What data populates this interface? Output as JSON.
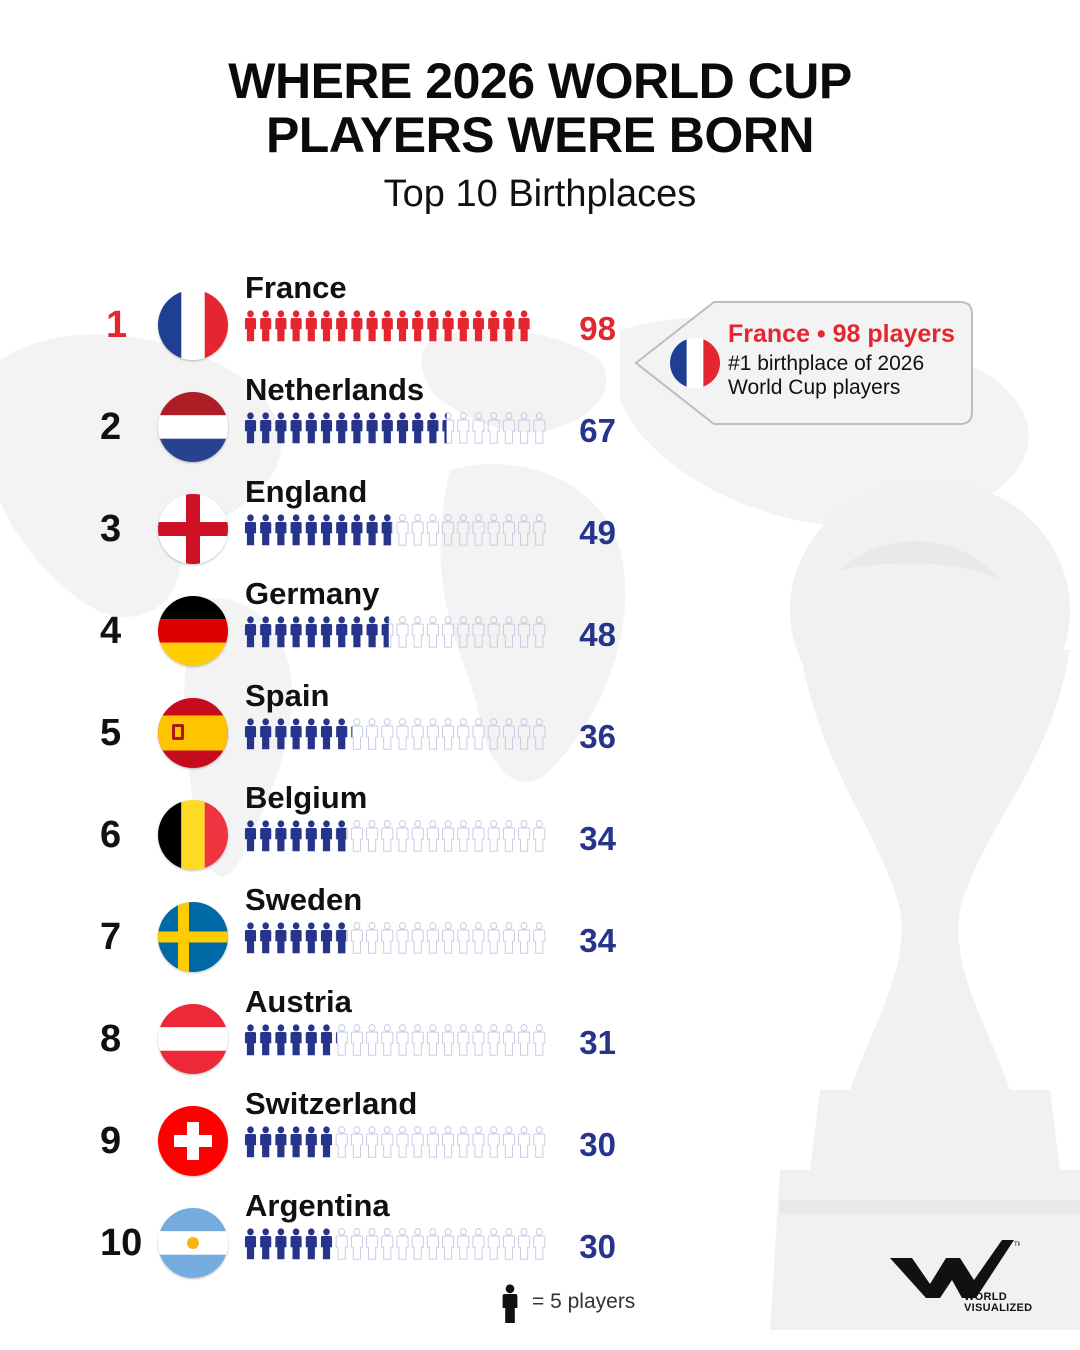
{
  "header": {
    "title_line1": "WHERE 2026 WORLD CUP",
    "title_line2": "PLAYERS WERE BORN",
    "subtitle": "Top 10 Birthplaces"
  },
  "colors": {
    "highlight": "#e3262f",
    "primary": "#27348b",
    "empty_icon_stroke": "#c3c8e2"
  },
  "chart_data": {
    "type": "pictogram",
    "unit_per_icon": 5,
    "categories": [
      "France",
      "Netherlands",
      "England",
      "Germany",
      "Spain",
      "Belgium",
      "Sweden",
      "Austria",
      "Switzerland",
      "Argentina"
    ],
    "ranks": [
      "1",
      "2",
      "3",
      "4",
      "5",
      "6",
      "7",
      "8",
      "9",
      "10"
    ],
    "values": [
      98,
      67,
      49,
      48,
      36,
      34,
      34,
      31,
      30,
      30
    ],
    "highlighted": "France"
  },
  "rows": [
    {
      "rank": "1",
      "country": "France",
      "value": "98",
      "flag": "france"
    },
    {
      "rank": "2",
      "country": "Netherlands",
      "value": "67",
      "flag": "netherlands"
    },
    {
      "rank": "3",
      "country": "England",
      "value": "49",
      "flag": "england"
    },
    {
      "rank": "4",
      "country": "Germany",
      "value": "48",
      "flag": "germany"
    },
    {
      "rank": "5",
      "country": "Spain",
      "value": "36",
      "flag": "spain"
    },
    {
      "rank": "6",
      "country": "Belgium",
      "value": "34",
      "flag": "belgium"
    },
    {
      "rank": "7",
      "country": "Sweden",
      "value": "34",
      "flag": "sweden"
    },
    {
      "rank": "8",
      "country": "Austria",
      "value": "31",
      "flag": "austria"
    },
    {
      "rank": "9",
      "country": "Switzerland",
      "value": "30",
      "flag": "switzerland"
    },
    {
      "rank": "10",
      "country": "Argentina",
      "value": "30",
      "flag": "argentina"
    }
  ],
  "callout": {
    "headline": "France • 98 players",
    "body": "#1 birthplace of 2026 World Cup players",
    "flag": "france"
  },
  "legend": {
    "text": "= 5 players",
    "icon": "person-icon"
  },
  "brand": {
    "line1": "WORLD",
    "line2": "VISUALIZED",
    "logo": "world-visualized-logo"
  }
}
